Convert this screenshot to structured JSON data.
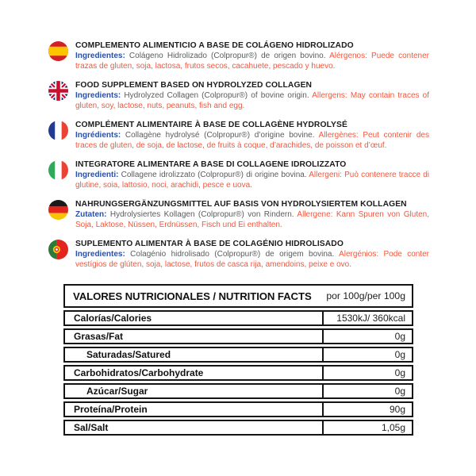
{
  "colors": {
    "title_text": "#1c1c1e",
    "lead_text": "#2b4fa3",
    "body_text": "#5a5b5e",
    "allergen_text": "#f4563c",
    "table_border": "#141414",
    "background": "#ffffff"
  },
  "sections": [
    {
      "flag_icon": "flag-spain-icon",
      "title": "COMPLEMENTO ALIMENTICIO A BASE DE COLÁGENO HIDROLIZADO",
      "lead": "Ingredientes:",
      "body": " Colágeno Hidrolizado (Colpropur®) de origen bovino. ",
      "allergen": "Alérgenos: Puede contener trazas de gluten, soja, lactosa, frutos secos, cacahuete, pescado y huevo."
    },
    {
      "flag_icon": "flag-uk-icon",
      "title": "FOOD SUPPLEMENT BASED ON HYDROLYZED COLLAGEN",
      "lead": "Ingredients:",
      "body": " Hydrolyzed Collagen (Colpropur®) of bovine origin. ",
      "allergen": "Allergens: May contain traces of gluten, soy, lactose, nuts, peanuts, fish and egg."
    },
    {
      "flag_icon": "flag-france-icon",
      "title": "COMPLÉMENT ALIMENTAIRE À BASE DE COLLAGÈNE HYDROLYSÉ",
      "lead": "Ingrédients:",
      "body": " Collagène hydrolysé (Colpropur®) d’origine bovine. ",
      "allergen": "Allergènes: Peut contenir des traces de gluten, de soja, de lactose, de fruits à coque, d’arachides, de poisson et d’œuf."
    },
    {
      "flag_icon": "flag-italy-icon",
      "title": "INTEGRATORE ALIMENTARE A BASE DI COLLAGENE IDROLIZZATO",
      "lead": "Ingredienti:",
      "body": " Collagene idrolizzato (Colpropur®) di origine bovina. ",
      "allergen": "Allergeni: Può contenere tracce di glutine, soia, lattosio, noci, arachidi, pesce e uova."
    },
    {
      "flag_icon": "flag-germany-icon",
      "title": "NAHRUNGSERGÄNZUNGSMITTEL AUF BASIS VON HYDROLYSIERTEM KOLLAGEN",
      "lead": "Zutaten:",
      "body": " Hydrolysiertes Kollagen (Colpropur®) von Rindern. ",
      "allergen": "Allergene: Kann Spuren von Gluten, Soja, Laktose, Nüssen, Erdnüssen, Fisch und Ei enthalten."
    },
    {
      "flag_icon": "flag-portugal-icon",
      "title": "SUPLEMENTO ALIMENTAR À BASE DE COLAGÉNIO HIDROLISADO",
      "lead": "Ingredientes:",
      "body": " Colagénio hidrolisado (Colpropur®) de origem bovina. ",
      "allergen": "Alergénios: Pode conter vestígios de glúten, soja, lactose, frutos de casca rija, amendoins, peixe e ovo."
    }
  ],
  "table": {
    "header": {
      "title": "VALORES NUTRICIONALES / NUTRITION FACTS",
      "unit": "por 100g/per 100g"
    },
    "rows": [
      {
        "label": "Calorías/Calories",
        "value": "1530kJ/ 360kcal",
        "indent": false
      },
      {
        "label": "Grasas/Fat",
        "value": "0g",
        "indent": false
      },
      {
        "label": "Saturadas/Satured",
        "value": "0g",
        "indent": true
      },
      {
        "label": "Carbohidratos/Carbohydrate",
        "value": "0g",
        "indent": false
      },
      {
        "label": "Azúcar/Sugar",
        "value": "0g",
        "indent": true
      },
      {
        "label": "Proteína/Protein",
        "value": "90g",
        "indent": false
      },
      {
        "label": "Sal/Salt",
        "value": "1,05g",
        "indent": false
      }
    ]
  }
}
